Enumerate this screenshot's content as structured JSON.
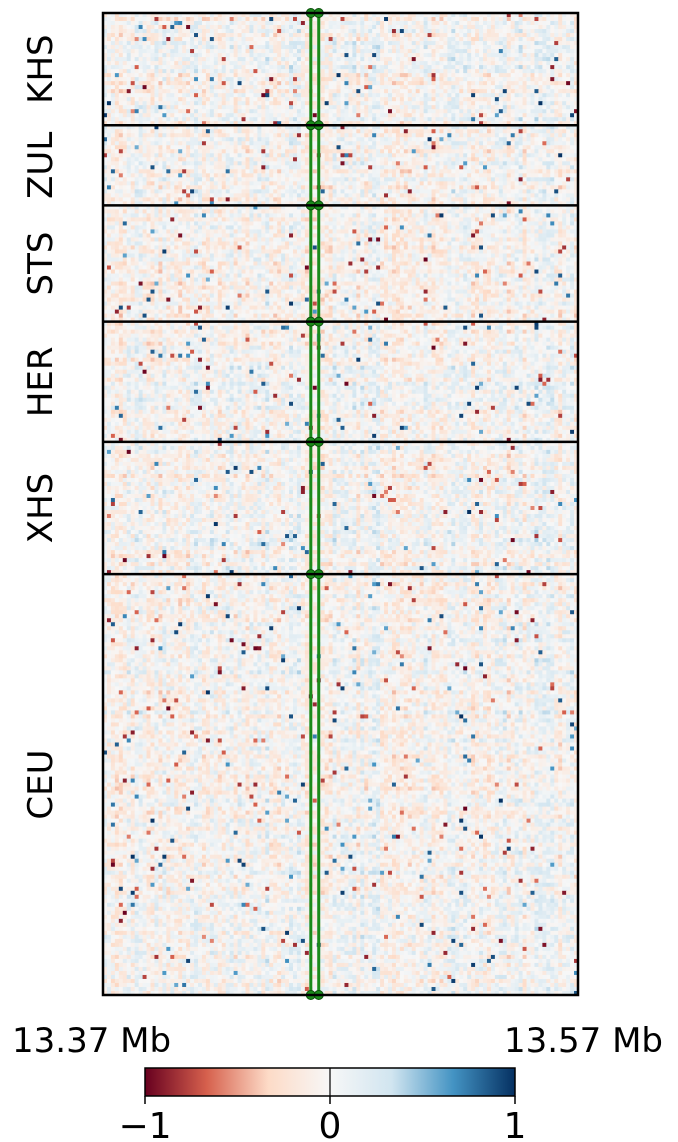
{
  "chart_data": {
    "type": "heatmap",
    "title": "",
    "groups": [
      "KHS",
      "ZUL",
      "STS",
      "HER",
      "XHS",
      "CEU"
    ],
    "group_rows": [
      28,
      20,
      29,
      30,
      33,
      105
    ],
    "columns": 120,
    "x_range": {
      "start": "13.37 Mb",
      "end": "13.57 Mb"
    },
    "xlabel": "",
    "ylabel": "",
    "highlight": {
      "columns": [
        52,
        54
      ],
      "color": "#1a8a1a"
    },
    "colorbar": {
      "min": -1,
      "max": 1,
      "ticks": [
        "−1",
        "0",
        "1"
      ],
      "colors": [
        "#67001f",
        "#d6604d",
        "#fddbc7",
        "#f7f7f7",
        "#d1e5f0",
        "#4393c3",
        "#053061"
      ]
    },
    "grid": false,
    "seed": 20240517
  }
}
